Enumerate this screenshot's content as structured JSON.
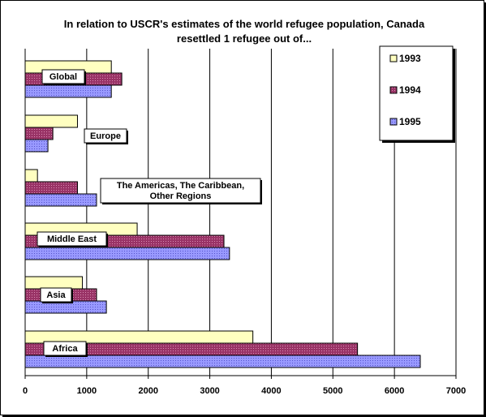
{
  "chart_data": {
    "type": "bar",
    "orientation": "horizontal",
    "title": "In relation to USCR's estimates of the world refugee population, Canada resettled 1 refugee out of...",
    "title_lines": [
      "In relation to USCR's estimates of the world refugee population, Canada",
      "resettled 1 refugee out of..."
    ],
    "categories": [
      "Global",
      "Europe",
      "The Americas, The Caribbean, Other Regions",
      "Middle East",
      "Asia",
      "Africa"
    ],
    "category_label_lines": [
      [
        "Global"
      ],
      [
        "Europe"
      ],
      [
        "The Americas, The Caribbean,",
        "Other Regions"
      ],
      [
        "Middle East"
      ],
      [
        "Asia"
      ],
      [
        "Africa"
      ]
    ],
    "series": [
      {
        "name": "1993",
        "values": [
          1400,
          850,
          200,
          1820,
          930,
          3700
        ]
      },
      {
        "name": "1994",
        "values": [
          1570,
          450,
          850,
          3230,
          1160,
          5400
        ]
      },
      {
        "name": "1995",
        "values": [
          1400,
          370,
          1160,
          3320,
          1320,
          6420
        ]
      }
    ],
    "xlim": [
      0,
      7000
    ],
    "x_ticks": [
      "0",
      "1000",
      "2000",
      "3000",
      "4000",
      "5000",
      "6000",
      "7000"
    ],
    "xlabel": "",
    "ylabel": "",
    "grid": "vertical",
    "legend": "top-right",
    "colors": {
      "1993": "#ffffc0",
      "1994": "#993366",
      "1995": "#9999ff"
    }
  }
}
